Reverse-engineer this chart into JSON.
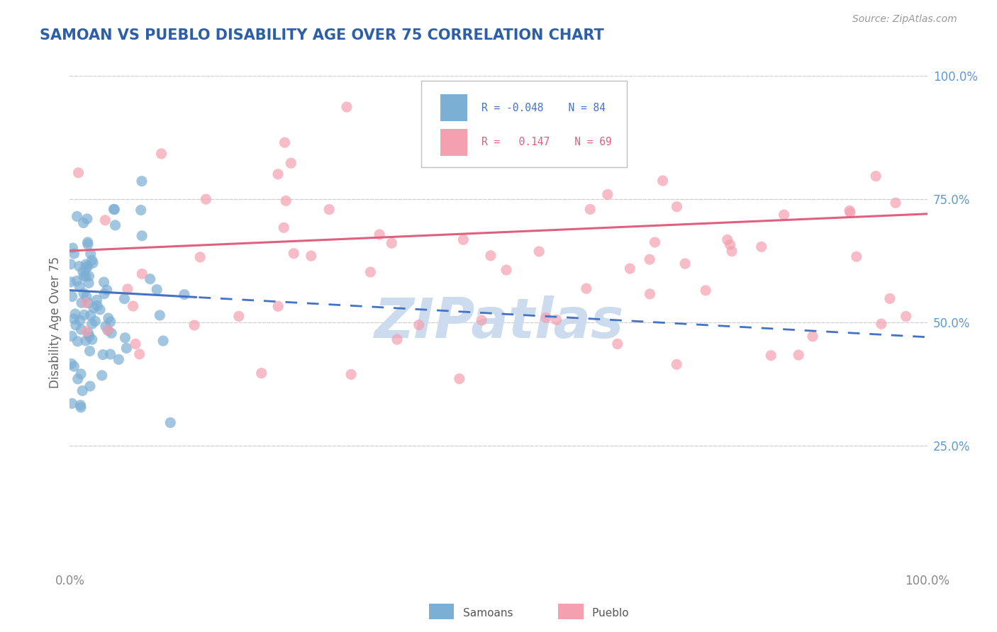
{
  "title": "SAMOAN VS PUEBLO DISABILITY AGE OVER 75 CORRELATION CHART",
  "source_text": "Source: ZipAtlas.com",
  "ylabel": "Disability Age Over 75",
  "xlim": [
    0,
    1
  ],
  "ylim": [
    0,
    1
  ],
  "samoans_color": "#7bafd4",
  "pueblo_color": "#f4a0b0",
  "samoan_line_color": "#4472c4",
  "pueblo_line_color": "#e06080",
  "samoan_R": -0.048,
  "samoan_N": 84,
  "pueblo_R": 0.147,
  "pueblo_N": 69,
  "legend_samoan_label": "Samoans",
  "legend_pueblo_label": "Pueblo",
  "background_color": "#ffffff",
  "title_color": "#2d5fa8",
  "watermark_text": "ZIPatlas",
  "watermark_color": "#ccdcee",
  "grid_color": "#d0d0d0",
  "right_tick_color": "#5b9bd5",
  "x_tick_color": "#888888",
  "ylabel_color": "#666666",
  "source_color": "#999999"
}
